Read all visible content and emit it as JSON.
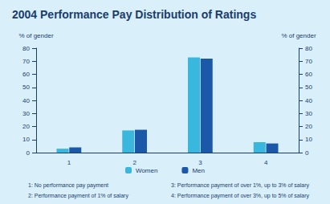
{
  "chart_data": {
    "type": "bar",
    "title": "2004 Performance Pay Distribution of Ratings",
    "categories": [
      "1",
      "2",
      "3",
      "4"
    ],
    "series": [
      {
        "name": "Women",
        "color": "#3ab7dc",
        "values": [
          3,
          17,
          73,
          8
        ]
      },
      {
        "name": "Men",
        "color": "#1b58a8",
        "values": [
          4,
          17.5,
          72,
          7
        ]
      }
    ],
    "ylabel": "% of gender",
    "y2label": "% of gender",
    "ylim": [
      0,
      80
    ],
    "yticks": [
      0,
      10,
      20,
      30,
      40,
      50,
      60,
      70,
      80
    ],
    "y2lim": [
      0,
      80
    ],
    "y2ticks": [
      0,
      10,
      20,
      30,
      40,
      50,
      60,
      70,
      80
    ],
    "grid": false,
    "legend": "bottom",
    "notes": [
      "1: No performance pay payment",
      "2: Performance payment of 1% of salary",
      "3: Performance payment of over 1%, up to 3% of salary",
      "4: Performance payment of over 3%, up to 5% of salary"
    ]
  }
}
